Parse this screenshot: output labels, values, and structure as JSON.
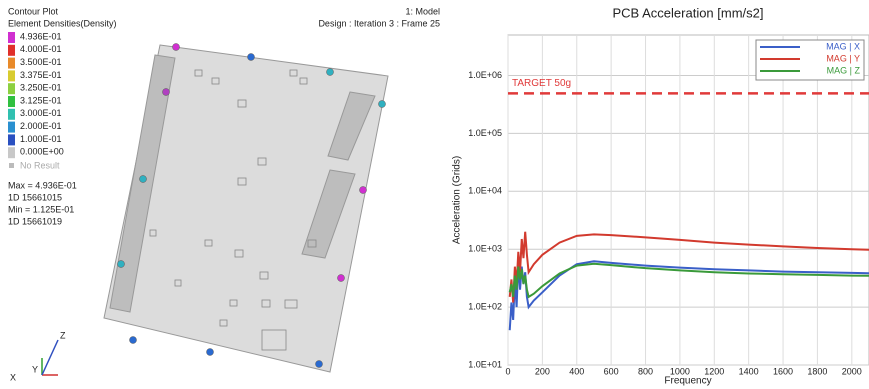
{
  "viewer": {
    "title": "Contour Plot",
    "subtitle": "Element Densities(Density)",
    "model": "1: Model",
    "design": "Design : Iteration 3 : Frame 25",
    "legend": [
      {
        "label": "4.936E-01",
        "color": "#d030d0"
      },
      {
        "label": "4.000E-01",
        "color": "#e0302a"
      },
      {
        "label": "3.500E-01",
        "color": "#e88a2a"
      },
      {
        "label": "3.375E-01",
        "color": "#d8cc30"
      },
      {
        "label": "3.250E-01",
        "color": "#8cd040"
      },
      {
        "label": "3.125E-01",
        "color": "#30c040"
      },
      {
        "label": "3.000E-01",
        "color": "#30c0b0"
      },
      {
        "label": "2.000E-01",
        "color": "#2a90d0"
      },
      {
        "label": "1.000E-01",
        "color": "#2a50c0"
      },
      {
        "label": "0.000E+00",
        "color": "#c8c8c8"
      }
    ],
    "no_result": "No Result",
    "max": "Max = 4.936E-01",
    "max_id": "1D 15661015",
    "min": "Min = 1.125E-01",
    "min_id": "1D 15661019",
    "axis_x": "X",
    "axis_y": "Y",
    "axis_z": "Z"
  },
  "chart_data": {
    "type": "line",
    "title": "PCB Acceleration [mm/s2]",
    "x_label": "Frequency",
    "y_label": "Acceleration (Grids)",
    "y_scale": "log",
    "grid": true,
    "legend_position": "top-right",
    "xlim": [
      0,
      2100
    ],
    "ylim": [
      10,
      5000000
    ],
    "xticks": [
      0,
      200,
      400,
      600,
      800,
      1000,
      1200,
      1400,
      1600,
      1800,
      2000
    ],
    "yticks": [
      {
        "value": 10,
        "label": "1.0E+01"
      },
      {
        "value": 100,
        "label": "1.0E+02"
      },
      {
        "value": 1000,
        "label": "1.0E+03"
      },
      {
        "value": 10000,
        "label": "1.0E+04"
      },
      {
        "value": 100000,
        "label": "1.0E+05"
      },
      {
        "value": 1000000,
        "label": "1.0E+06"
      }
    ],
    "reference_line": {
      "value": 490000,
      "label": "TARGET 50g",
      "color": "#e03a3a"
    },
    "x": [
      10,
      20,
      30,
      40,
      50,
      60,
      70,
      80,
      90,
      100,
      110,
      120,
      150,
      200,
      300,
      400,
      500,
      600,
      800,
      1000,
      1200,
      1400,
      1600,
      1800,
      2000,
      2100
    ],
    "series": [
      {
        "name": "MAG | X",
        "color": "#3a5fc8",
        "values": [
          40,
          120,
          60,
          300,
          100,
          600,
          200,
          500,
          250,
          400,
          150,
          100,
          130,
          180,
          350,
          550,
          620,
          580,
          520,
          480,
          450,
          430,
          410,
          400,
          390,
          385
        ]
      },
      {
        "name": "MAG | Y",
        "color": "#d23a2e",
        "values": [
          150,
          300,
          120,
          500,
          250,
          900,
          400,
          1500,
          700,
          2000,
          800,
          400,
          550,
          800,
          1300,
          1700,
          1800,
          1750,
          1600,
          1450,
          1300,
          1200,
          1120,
          1050,
          1000,
          980
        ]
      },
      {
        "name": "MAG | Z",
        "color": "#3a9a3a",
        "values": [
          180,
          250,
          150,
          350,
          200,
          500,
          300,
          450,
          250,
          350,
          200,
          150,
          170,
          230,
          380,
          520,
          560,
          530,
          470,
          430,
          400,
          380,
          370,
          360,
          350,
          348
        ]
      }
    ]
  }
}
